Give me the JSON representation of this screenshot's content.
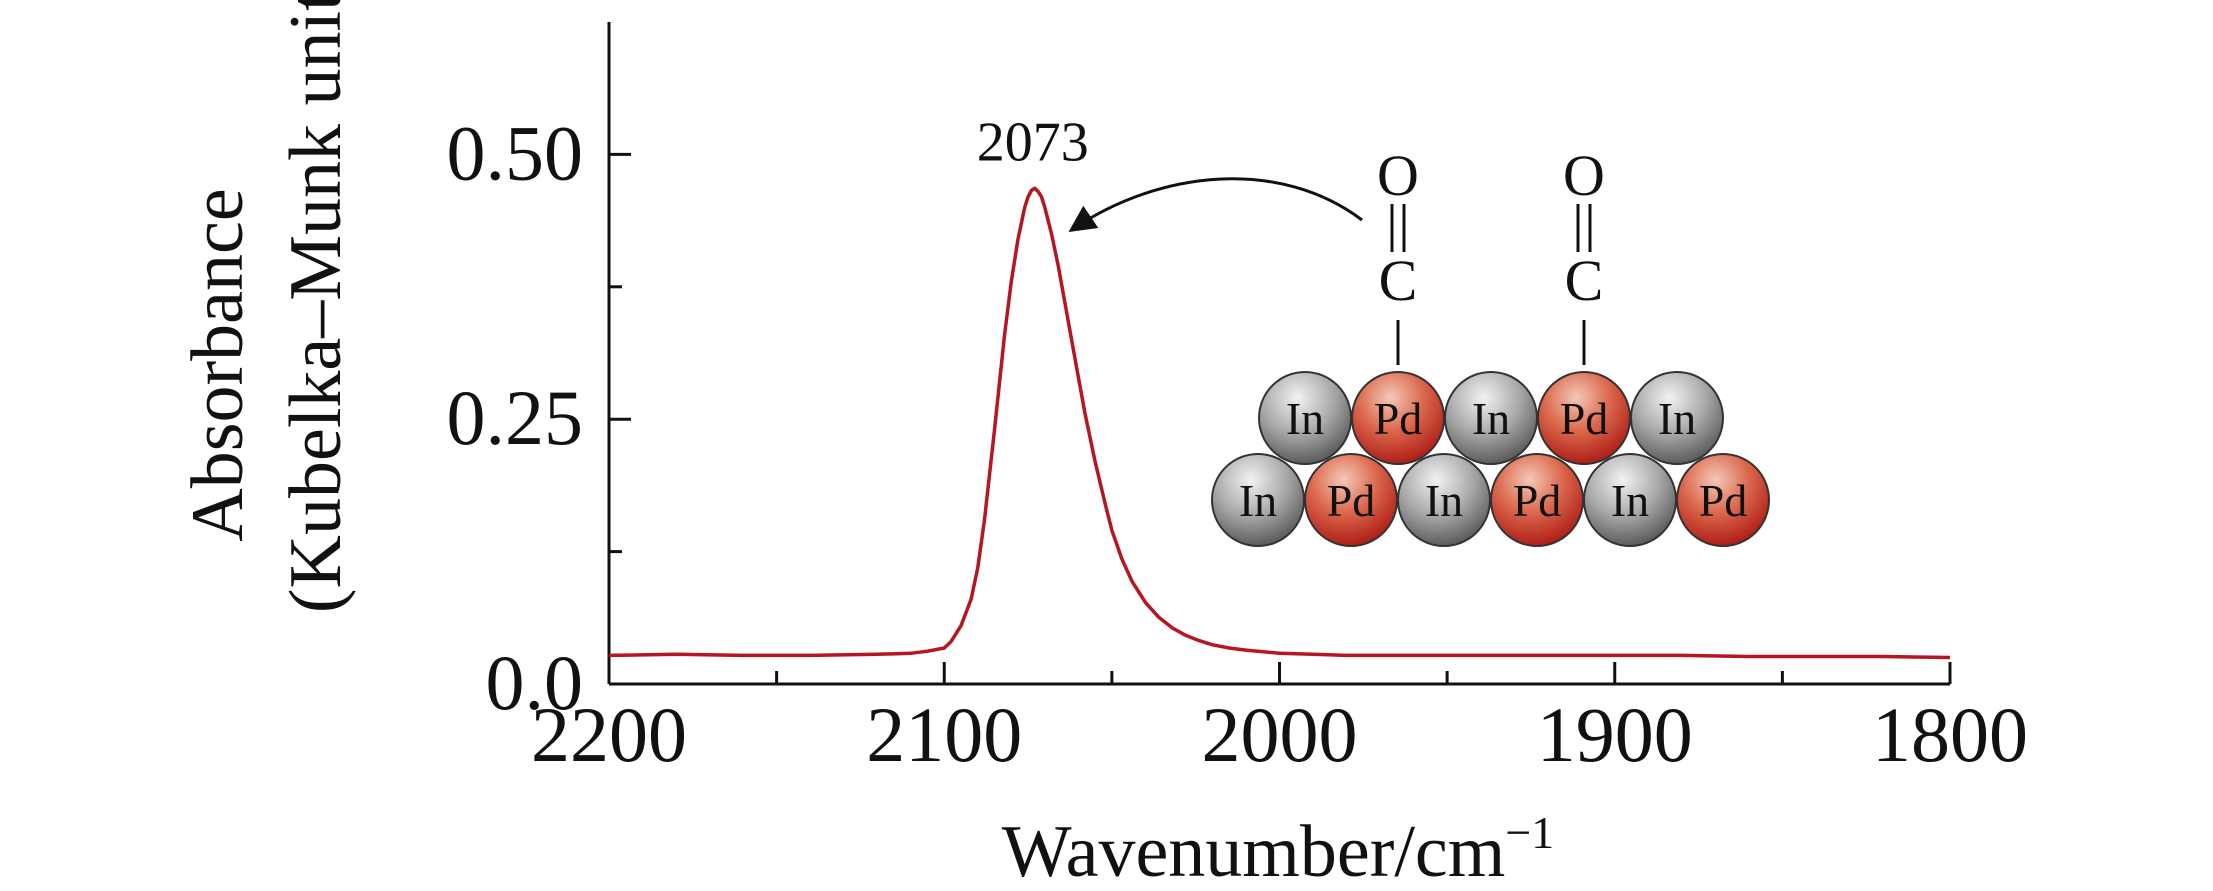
{
  "chart_data": {
    "type": "line",
    "xlabel": "Wavenumber/cm",
    "xlabel_sup": "−1",
    "ylabel_line1": "Absorbance",
    "ylabel_line2": "(Kubelka–Munk units)",
    "xlim": [
      2200,
      1800
    ],
    "x_reversed": true,
    "ylim": [
      0,
      0.625
    ],
    "x_major_ticks": [
      2200,
      2100,
      2000,
      1900,
      1800
    ],
    "x_tick_labels": [
      "2200",
      "2100",
      "2000",
      "1900",
      "1800"
    ],
    "x_minor_ticks": [
      2150,
      2050,
      1950,
      1850
    ],
    "y_major_ticks": [
      0,
      0.25,
      0.5
    ],
    "y_tick_labels": [
      "0.0",
      "0.25",
      "0.50"
    ],
    "y_minor_ticks": [
      0.125,
      0.375
    ],
    "grid": false,
    "legend": "none",
    "series": [
      {
        "color": "#b5161f",
        "x": [
          2200,
          2180,
          2160,
          2140,
          2120,
          2110,
          2105,
          2100,
          2098,
          2095,
          2092,
          2090,
          2088,
          2085,
          2082,
          2080,
          2078,
          2076,
          2075,
          2074,
          2073,
          2072,
          2071,
          2070,
          2068,
          2066,
          2064,
          2062,
          2060,
          2058,
          2055,
          2052,
          2050,
          2047,
          2044,
          2040,
          2036,
          2032,
          2028,
          2024,
          2020,
          2015,
          2010,
          2000,
          1990,
          1980,
          1960,
          1940,
          1920,
          1900,
          1880,
          1860,
          1840,
          1820,
          1800
        ],
        "y": [
          0.027,
          0.028,
          0.027,
          0.027,
          0.028,
          0.029,
          0.031,
          0.034,
          0.04,
          0.055,
          0.08,
          0.11,
          0.155,
          0.24,
          0.33,
          0.38,
          0.42,
          0.45,
          0.46,
          0.466,
          0.468,
          0.465,
          0.46,
          0.45,
          0.425,
          0.395,
          0.36,
          0.325,
          0.29,
          0.255,
          0.21,
          0.17,
          0.145,
          0.118,
          0.097,
          0.077,
          0.063,
          0.053,
          0.046,
          0.041,
          0.037,
          0.034,
          0.032,
          0.029,
          0.028,
          0.027,
          0.027,
          0.027,
          0.027,
          0.027,
          0.027,
          0.026,
          0.026,
          0.026,
          0.025
        ]
      }
    ],
    "annotations": [
      {
        "text": "2073",
        "x": 2073,
        "y": 0.468
      }
    ],
    "inset": {
      "adsorbates": [
        {
          "top": "O",
          "mid": "C"
        },
        {
          "top": "O",
          "mid": "C"
        }
      ],
      "top_row": [
        "In",
        "Pd",
        "In",
        "Pd",
        "In"
      ],
      "bottom_row": [
        "In",
        "Pd",
        "In",
        "Pd",
        "In",
        "Pd"
      ]
    }
  },
  "colors": {
    "line": "#b5161f",
    "pd_atom": "#c4301f",
    "in_atom": "#8a8a8a",
    "axis": "#111111"
  }
}
